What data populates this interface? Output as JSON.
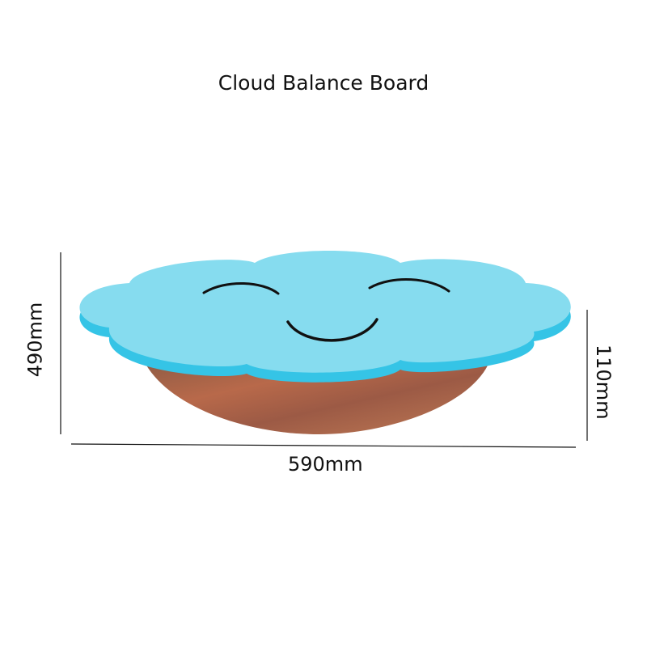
{
  "title": "Cloud Balance Board",
  "dimensions": {
    "height": "490mm",
    "width": "590mm",
    "rocker_height": "110mm"
  },
  "colors": {
    "board_top": "#86dcef",
    "board_edge": "#35c4e6",
    "wood": "#a35a3c",
    "face_lines": "#111111"
  }
}
